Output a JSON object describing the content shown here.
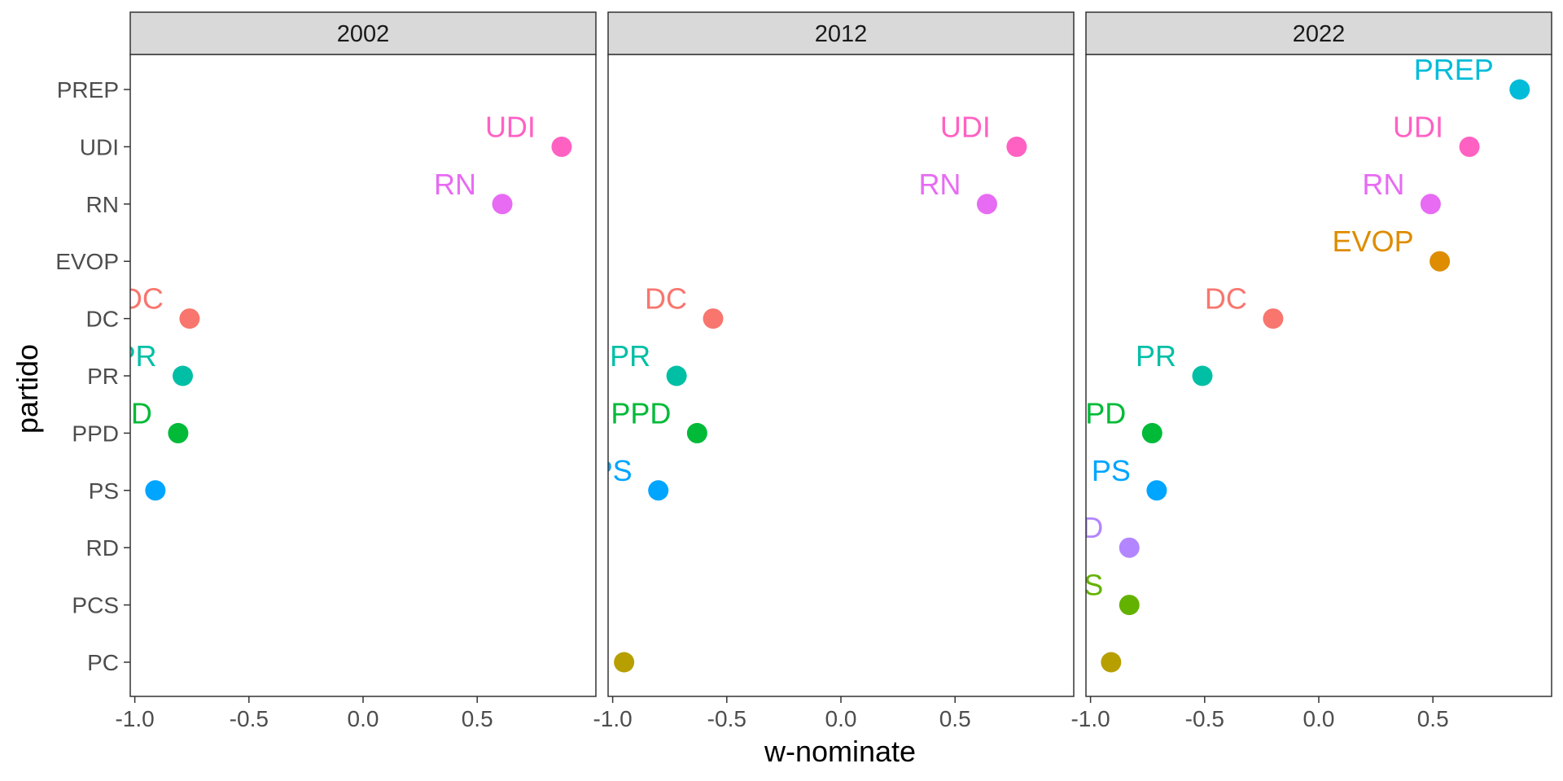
{
  "chart_data": {
    "type": "scatter",
    "xlabel": "w-nominate",
    "ylabel": "partido",
    "xlim": [
      -1.02,
      1.02
    ],
    "x_ticks": [
      "-1.0",
      "-0.5",
      "0.0",
      "0.5"
    ],
    "x_tick_values": [
      -1.0,
      -0.5,
      0.0,
      0.5
    ],
    "categories": [
      "PREP",
      "UDI",
      "RN",
      "EVOP",
      "DC",
      "PR",
      "PPD",
      "PS",
      "RD",
      "PCS",
      "PC"
    ],
    "colors": {
      "PREP": "#00bcd8",
      "UDI": "#ff61c3",
      "RN": "#e76bf3",
      "EVOP": "#de8c00",
      "DC": "#f8766d",
      "PR": "#00bfa5",
      "PPD": "#00ba38",
      "PS": "#00a5ff",
      "RD": "#b385ff",
      "PCS": "#64b200",
      "PC": "#b79f00"
    },
    "panels": [
      {
        "year": "2002",
        "points": [
          {
            "partido": "UDI",
            "x": 0.87
          },
          {
            "partido": "RN",
            "x": 0.61
          },
          {
            "partido": "DC",
            "x": -0.76
          },
          {
            "partido": "PR",
            "x": -0.79
          },
          {
            "partido": "PPD",
            "x": -0.81
          },
          {
            "partido": "PS",
            "x": -0.91
          }
        ]
      },
      {
        "year": "2012",
        "points": [
          {
            "partido": "UDI",
            "x": 0.77
          },
          {
            "partido": "RN",
            "x": 0.64
          },
          {
            "partido": "DC",
            "x": -0.56
          },
          {
            "partido": "PR",
            "x": -0.72
          },
          {
            "partido": "PPD",
            "x": -0.63
          },
          {
            "partido": "PS",
            "x": -0.8
          },
          {
            "partido": "PC",
            "x": -0.95
          }
        ]
      },
      {
        "year": "2022",
        "points": [
          {
            "partido": "PREP",
            "x": 0.88
          },
          {
            "partido": "UDI",
            "x": 0.66
          },
          {
            "partido": "RN",
            "x": 0.49
          },
          {
            "partido": "EVOP",
            "x": 0.53
          },
          {
            "partido": "DC",
            "x": -0.2
          },
          {
            "partido": "PR",
            "x": -0.51
          },
          {
            "partido": "PPD",
            "x": -0.73
          },
          {
            "partido": "PS",
            "x": -0.71
          },
          {
            "partido": "RD",
            "x": -0.83
          },
          {
            "partido": "PCS",
            "x": -0.83
          },
          {
            "partido": "PC",
            "x": -0.91
          }
        ]
      }
    ]
  }
}
